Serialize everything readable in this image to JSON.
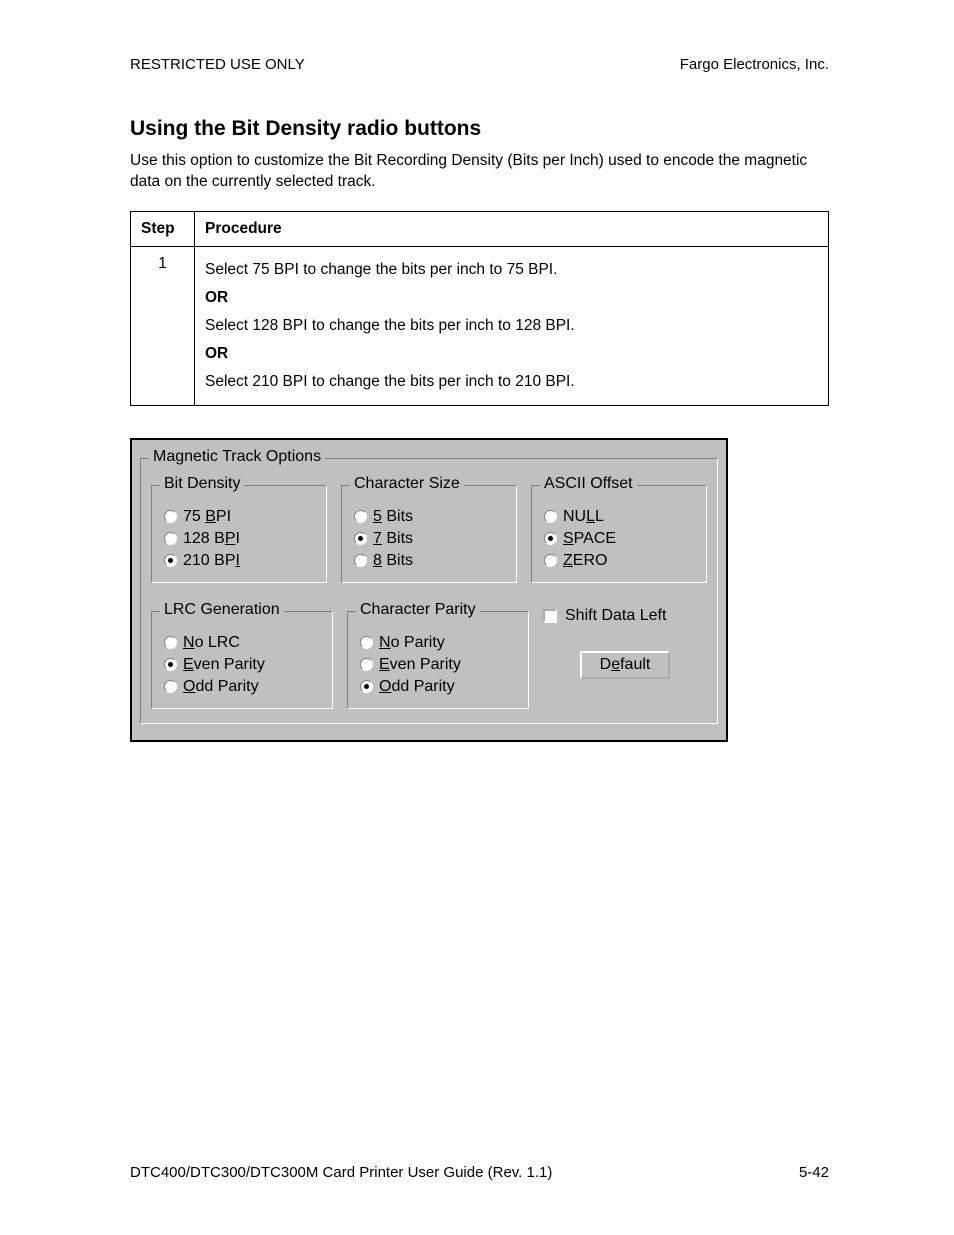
{
  "header": {
    "left": "RESTRICTED USE ONLY",
    "right": "Fargo Electronics, Inc."
  },
  "section": {
    "title": "Using the Bit Density radio buttons",
    "intro": "Use this option to customize the Bit Recording Density (Bits per Inch) used to encode the magnetic data on the currently selected track."
  },
  "table": {
    "col_step": "Step",
    "col_proc": "Procedure",
    "step_num": "1",
    "line1": "Select 75 BPI to change the bits per inch to 75 BPI.",
    "or": "OR",
    "line2": "Select 128 BPI to change the bits per inch to 128 BPI.",
    "line3": "Select 210 BPI to change the bits per inch to 210 BPI."
  },
  "dialog": {
    "outer_title": "Magnetic Track Options",
    "bit_density": {
      "title": "Bit Density",
      "options": [
        {
          "pre": "  75 ",
          "u": "B",
          "post": "PI",
          "selected": false
        },
        {
          "pre": "128 B",
          "u": "P",
          "post": "I",
          "selected": false
        },
        {
          "pre": "210 BP",
          "u": "I",
          "post": "",
          "selected": true
        }
      ]
    },
    "char_size": {
      "title": "Character Size",
      "options": [
        {
          "pre": "",
          "u": "5",
          "post": " Bits",
          "selected": false
        },
        {
          "pre": "",
          "u": "7",
          "post": " Bits",
          "selected": true
        },
        {
          "pre": "",
          "u": "8",
          "post": " Bits",
          "selected": false
        }
      ]
    },
    "ascii_offset": {
      "title": "ASCII Offset",
      "options": [
        {
          "pre": "NU",
          "u": "L",
          "post": "L",
          "selected": false
        },
        {
          "pre": "",
          "u": "S",
          "post": "PACE",
          "selected": true
        },
        {
          "pre": "",
          "u": "Z",
          "post": "ERO",
          "selected": false
        }
      ]
    },
    "lrc": {
      "title": "LRC Generation",
      "options": [
        {
          "pre": "",
          "u": "N",
          "post": "o LRC",
          "selected": false
        },
        {
          "pre": "",
          "u": "E",
          "post": "ven Parity",
          "selected": true
        },
        {
          "pre": "",
          "u": "O",
          "post": "dd Parity",
          "selected": false
        }
      ]
    },
    "char_parity": {
      "title": "Character Parity",
      "options": [
        {
          "pre": "",
          "u": "N",
          "post": "o Parity",
          "selected": false
        },
        {
          "pre": "",
          "u": "E",
          "post": "ven Parity",
          "selected": false
        },
        {
          "pre": "",
          "u": "O",
          "post": "dd Parity",
          "selected": true
        }
      ]
    },
    "shift_label": "Shift Data Left",
    "default_pre": "D",
    "default_u": "e",
    "default_post": "fault"
  },
  "footer": {
    "left": "DTC400/DTC300/DTC300M Card Printer User Guide (Rev. 1.1)",
    "right": "5-42"
  }
}
